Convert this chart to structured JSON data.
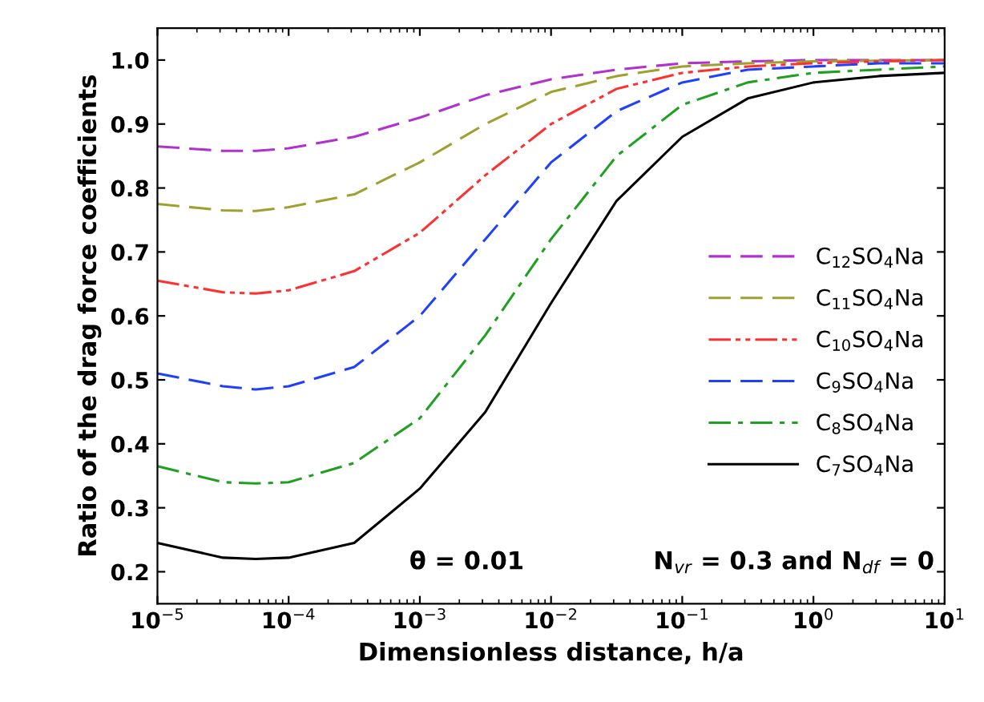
{
  "chart_data": {
    "type": "line",
    "xlabel": "Dimensionless distance, h/a",
    "ylabel": "Ratio of the drag force coefficients",
    "log": "x",
    "grid": false,
    "legend": "right",
    "marker": "none",
    "x": [
      1e-05,
      3.16e-05,
      5.62e-05,
      0.0001,
      0.000316,
      0.001,
      0.00316,
      0.01,
      0.0316,
      0.1,
      0.316,
      1,
      3.16,
      10
    ],
    "xlim": [
      1e-05,
      10
    ],
    "xticks": [
      {
        "value": 1e-05,
        "label": "10$^{−5}$"
      },
      {
        "value": 0.0001,
        "label": "10$^{−4}$"
      },
      {
        "value": 0.001,
        "label": "10$^{−3}$"
      },
      {
        "value": 0.01,
        "label": "10$^{−2}$"
      },
      {
        "value": 0.1,
        "label": "10$^{−1}$"
      },
      {
        "value": 1,
        "label": "10$^{0}$"
      },
      {
        "value": 10,
        "label": "10$^{1}$"
      }
    ],
    "ylim": [
      0.15,
      1.05
    ],
    "yticks": [
      {
        "value": 0.2,
        "label": "0.2"
      },
      {
        "value": 0.3,
        "label": "0.3"
      },
      {
        "value": 0.4,
        "label": "0.4"
      },
      {
        "value": 0.5,
        "label": "0.5"
      },
      {
        "value": 0.6,
        "label": "0.6"
      },
      {
        "value": 0.7,
        "label": "0.7"
      },
      {
        "value": 0.8,
        "label": "0.8"
      },
      {
        "value": 0.9,
        "label": "0.9"
      },
      {
        "value": 1.0,
        "label": "1.0"
      }
    ],
    "series": [
      {
        "name": "C$_{12}$SO$_{4}$Na",
        "color": "#b030d0",
        "line_style": "dashed",
        "values": [
          0.865,
          0.858,
          0.858,
          0.862,
          0.88,
          0.91,
          0.945,
          0.97,
          0.985,
          0.995,
          0.998,
          1.0,
          1.0,
          1.0
        ]
      },
      {
        "name": "C$_{11}$SO$_{4}$Na",
        "color": "#a0a030",
        "line_style": "dashed",
        "values": [
          0.775,
          0.765,
          0.764,
          0.77,
          0.79,
          0.84,
          0.9,
          0.95,
          0.975,
          0.99,
          0.995,
          0.998,
          0.999,
          1.0
        ]
      },
      {
        "name": "C$_{10}$SO$_{4}$Na",
        "color": "#ff3030",
        "line_style": "dashdotdot",
        "values": [
          0.655,
          0.637,
          0.635,
          0.64,
          0.67,
          0.73,
          0.82,
          0.9,
          0.955,
          0.98,
          0.99,
          0.995,
          0.998,
          1.0
        ]
      },
      {
        "name": "C$_{9}$SO$_{4}$Na",
        "color": "#2040ff",
        "line_style": "dashed",
        "values": [
          0.51,
          0.49,
          0.485,
          0.49,
          0.52,
          0.6,
          0.72,
          0.84,
          0.92,
          0.965,
          0.985,
          0.99,
          0.995,
          0.995
        ]
      },
      {
        "name": "C$_{8}$SO$_{4}$Na",
        "color": "#20a020",
        "line_style": "dashdot",
        "values": [
          0.365,
          0.34,
          0.338,
          0.34,
          0.37,
          0.44,
          0.57,
          0.72,
          0.85,
          0.93,
          0.965,
          0.98,
          0.985,
          0.99
        ]
      },
      {
        "name": "C$_{7}$SO$_{4}$Na",
        "color": "#000000",
        "line_style": "solid",
        "values": [
          0.245,
          0.222,
          0.22,
          0.222,
          0.245,
          0.33,
          0.45,
          0.62,
          0.78,
          0.88,
          0.94,
          0.965,
          0.975,
          0.98
        ]
      }
    ],
    "annotations": [
      "θ = 0.01",
      "N$_{vr}$ = 0.3 and N$_{df}$ = 0"
    ]
  }
}
